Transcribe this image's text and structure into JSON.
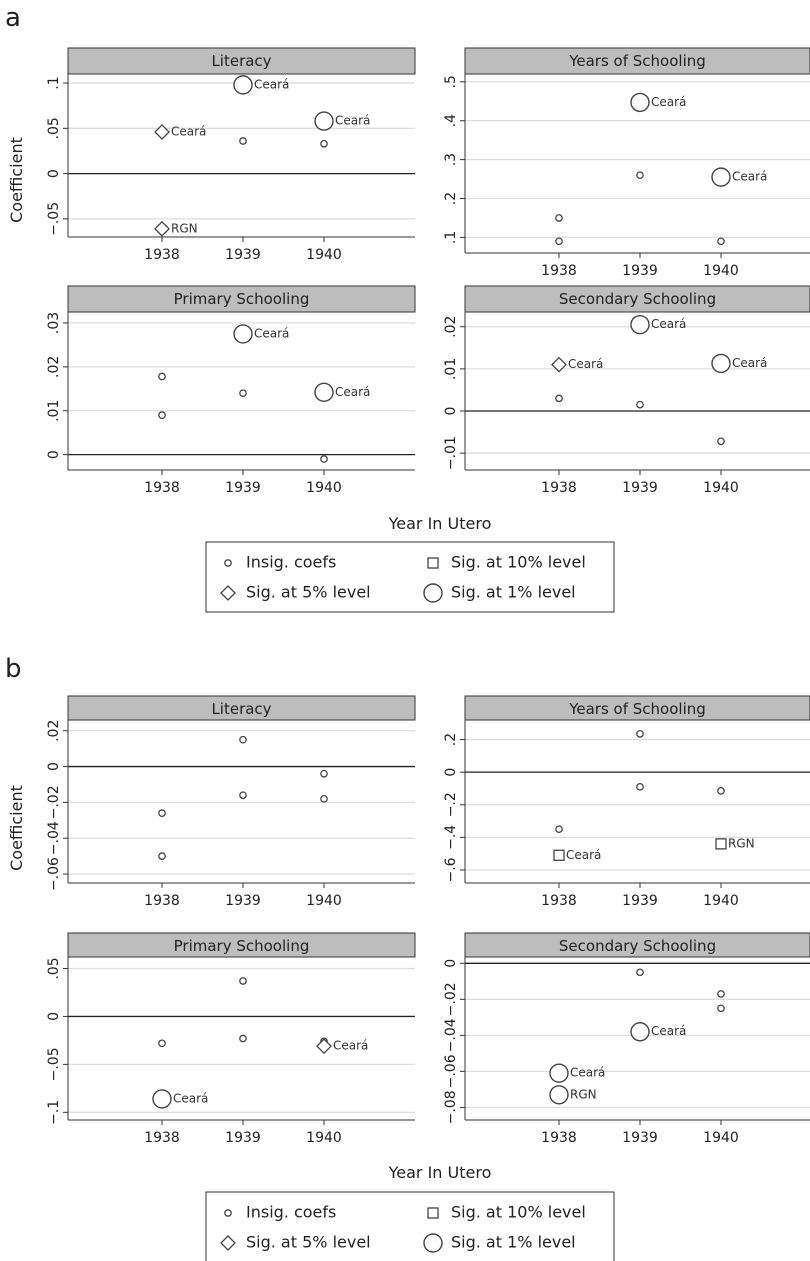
{
  "legend": [
    {
      "label": "Insig. coefs",
      "marker": "small-circle"
    },
    {
      "label": "Sig. at 10% level",
      "marker": "square"
    },
    {
      "label": "Sig. at 5% level",
      "marker": "diamond"
    },
    {
      "label": "Sig. at 1% level",
      "marker": "large-circle"
    }
  ],
  "chart_data": [
    {
      "panel": "a",
      "type": "scatter",
      "xlabel": "Year In Utero",
      "ylabel": "Coefficient",
      "xticks": [
        "1938",
        "1939",
        "1940"
      ],
      "grid": true,
      "legend_position": "bottom",
      "subplots": [
        {
          "title": "Literacy",
          "ylim": [
            -0.07,
            0.11
          ],
          "yticks": [
            -0.05,
            0,
            0.05,
            0.1
          ],
          "yticklabels": [
            "−.05",
            "0",
            ".05",
            ".1"
          ],
          "points": [
            {
              "x": 1938,
              "y": 0.046,
              "sig": "5%",
              "label": "Ceará"
            },
            {
              "x": 1938,
              "y": -0.061,
              "sig": "5%",
              "label": "RGN"
            },
            {
              "x": 1939,
              "y": 0.098,
              "sig": "1%",
              "label": "Ceará"
            },
            {
              "x": 1939,
              "y": 0.036,
              "sig": "insig"
            },
            {
              "x": 1940,
              "y": 0.058,
              "sig": "1%",
              "label": "Ceará"
            },
            {
              "x": 1940,
              "y": 0.033,
              "sig": "insig"
            }
          ]
        },
        {
          "title": "Years of Schooling",
          "ylim": [
            0.06,
            0.52
          ],
          "yticks": [
            0.1,
            0.2,
            0.3,
            0.4,
            0.5
          ],
          "yticklabels": [
            ".1",
            ".2",
            ".3",
            ".4",
            ".5"
          ],
          "points": [
            {
              "x": 1938,
              "y": 0.15,
              "sig": "insig"
            },
            {
              "x": 1938,
              "y": 0.09,
              "sig": "insig"
            },
            {
              "x": 1939,
              "y": 0.447,
              "sig": "1%",
              "label": "Ceará"
            },
            {
              "x": 1939,
              "y": 0.26,
              "sig": "insig"
            },
            {
              "x": 1940,
              "y": 0.255,
              "sig": "1%",
              "label": "Ceará"
            },
            {
              "x": 1940,
              "y": 0.09,
              "sig": "insig"
            }
          ]
        },
        {
          "title": "Primary Schooling",
          "ylim": [
            -0.0035,
            0.0325
          ],
          "yticks": [
            0,
            0.01,
            0.02,
            0.03
          ],
          "yticklabels": [
            "0",
            ".01",
            ".02",
            ".03"
          ],
          "points": [
            {
              "x": 1938,
              "y": 0.0178,
              "sig": "insig"
            },
            {
              "x": 1938,
              "y": 0.009,
              "sig": "insig"
            },
            {
              "x": 1939,
              "y": 0.0275,
              "sig": "1%",
              "label": "Ceará"
            },
            {
              "x": 1939,
              "y": 0.014,
              "sig": "insig"
            },
            {
              "x": 1940,
              "y": 0.0142,
              "sig": "1%",
              "label": "Ceará"
            },
            {
              "x": 1940,
              "y": -0.001,
              "sig": "insig"
            }
          ]
        },
        {
          "title": "Secondary Schooling",
          "ylim": [
            -0.014,
            0.0235
          ],
          "yticks": [
            -0.01,
            0,
            0.01,
            0.02
          ],
          "yticklabels": [
            "−.01",
            "0",
            ".01",
            ".02"
          ],
          "points": [
            {
              "x": 1938,
              "y": 0.011,
              "sig": "5%",
              "label": "Ceará"
            },
            {
              "x": 1938,
              "y": 0.003,
              "sig": "insig"
            },
            {
              "x": 1939,
              "y": 0.0205,
              "sig": "1%",
              "label": "Ceará"
            },
            {
              "x": 1939,
              "y": 0.0015,
              "sig": "insig"
            },
            {
              "x": 1940,
              "y": 0.0113,
              "sig": "1%",
              "label": "Ceará"
            },
            {
              "x": 1940,
              "y": -0.0072,
              "sig": "insig"
            }
          ]
        }
      ]
    },
    {
      "panel": "b",
      "type": "scatter",
      "xlabel": "Year In Utero",
      "ylabel": "Coefficient",
      "xticks": [
        "1938",
        "1939",
        "1940"
      ],
      "grid": true,
      "legend_position": "bottom",
      "subplots": [
        {
          "title": "Literacy",
          "ylim": [
            -0.065,
            0.026
          ],
          "yticks": [
            -0.06,
            -0.04,
            -0.02,
            0,
            0.02
          ],
          "yticklabels": [
            "−.06",
            "−.04",
            "−.02",
            "0",
            ".02"
          ],
          "points": [
            {
              "x": 1938,
              "y": -0.026,
              "sig": "insig"
            },
            {
              "x": 1938,
              "y": -0.05,
              "sig": "insig"
            },
            {
              "x": 1939,
              "y": 0.015,
              "sig": "insig"
            },
            {
              "x": 1939,
              "y": -0.016,
              "sig": "insig"
            },
            {
              "x": 1940,
              "y": -0.004,
              "sig": "insig"
            },
            {
              "x": 1940,
              "y": -0.018,
              "sig": "insig"
            }
          ]
        },
        {
          "title": "Years of Schooling",
          "ylim": [
            -0.68,
            0.32
          ],
          "yticks": [
            -0.6,
            -0.4,
            -0.2,
            0,
            0.2
          ],
          "yticklabels": [
            "−.6",
            "−.4",
            "−.2",
            "0",
            ".2"
          ],
          "points": [
            {
              "x": 1938,
              "y": -0.35,
              "sig": "insig"
            },
            {
              "x": 1938,
              "y": -0.51,
              "sig": "10%",
              "label": "Ceará"
            },
            {
              "x": 1939,
              "y": 0.235,
              "sig": "insig"
            },
            {
              "x": 1939,
              "y": -0.09,
              "sig": "insig"
            },
            {
              "x": 1940,
              "y": -0.115,
              "sig": "insig"
            },
            {
              "x": 1940,
              "y": -0.44,
              "sig": "10%",
              "label": "RGN"
            }
          ]
        },
        {
          "title": "Primary Schooling",
          "ylim": [
            -0.108,
            0.062
          ],
          "yticks": [
            -0.1,
            -0.05,
            0,
            0.05
          ],
          "yticklabels": [
            "−.1",
            "−.05",
            "0",
            ".05"
          ],
          "points": [
            {
              "x": 1938,
              "y": -0.028,
              "sig": "insig"
            },
            {
              "x": 1938,
              "y": -0.086,
              "sig": "1%",
              "label": "Ceará"
            },
            {
              "x": 1939,
              "y": 0.037,
              "sig": "insig"
            },
            {
              "x": 1939,
              "y": -0.023,
              "sig": "insig"
            },
            {
              "x": 1940,
              "y": -0.026,
              "sig": "insig"
            },
            {
              "x": 1940,
              "y": -0.031,
              "sig": "5%",
              "label": "Ceará"
            }
          ]
        },
        {
          "title": "Secondary Schooling",
          "ylim": [
            -0.087,
            0.0035
          ],
          "yticks": [
            -0.08,
            -0.06,
            -0.04,
            -0.02,
            0
          ],
          "yticklabels": [
            "−.08",
            "−.06",
            "−.04",
            "−.02",
            "0"
          ],
          "points": [
            {
              "x": 1938,
              "y": -0.061,
              "sig": "1%",
              "label": "Ceará"
            },
            {
              "x": 1938,
              "y": -0.073,
              "sig": "1%",
              "label": "RGN"
            },
            {
              "x": 1939,
              "y": -0.005,
              "sig": "insig"
            },
            {
              "x": 1939,
              "y": -0.038,
              "sig": "1%",
              "label": "Ceará"
            },
            {
              "x": 1940,
              "y": -0.017,
              "sig": "insig"
            },
            {
              "x": 1940,
              "y": -0.025,
              "sig": "insig"
            }
          ]
        }
      ]
    }
  ]
}
